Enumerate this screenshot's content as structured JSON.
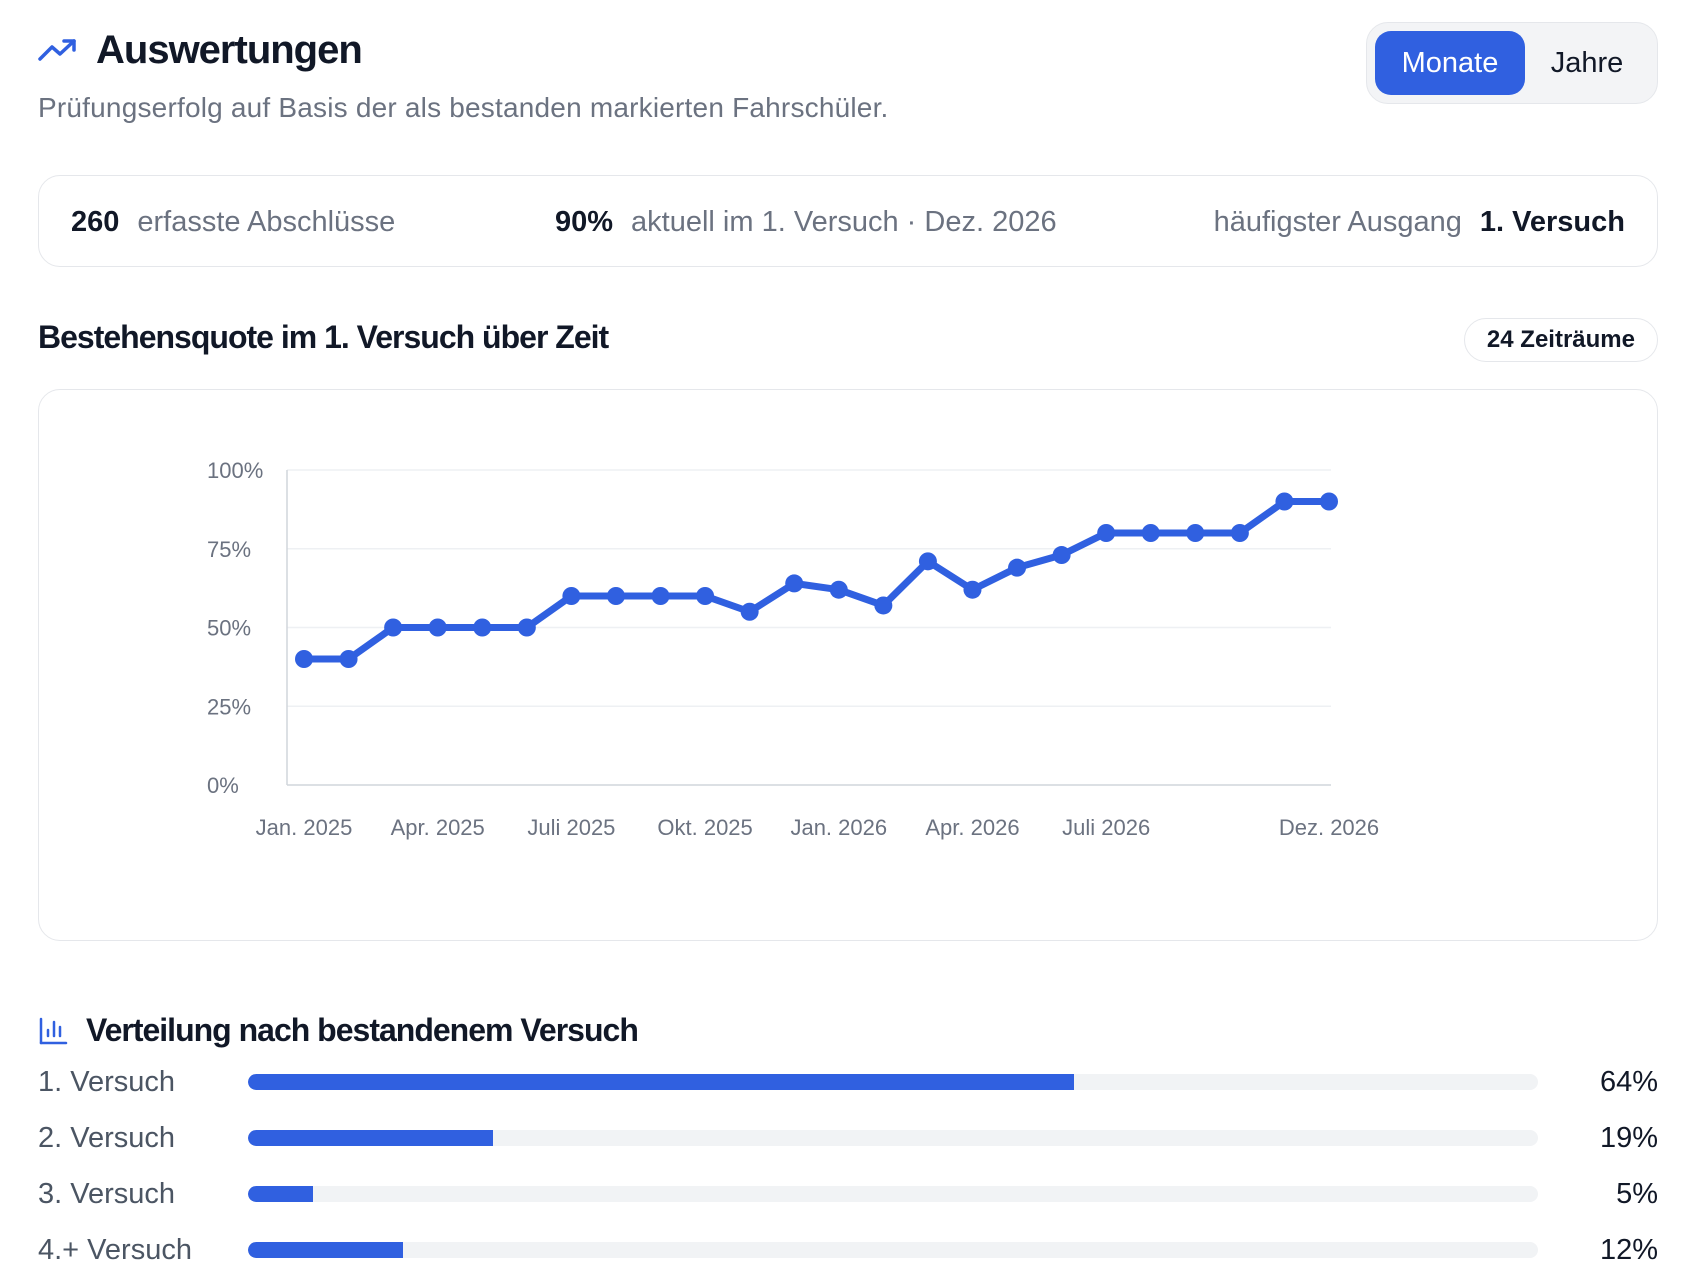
{
  "header": {
    "title": "Auswertungen",
    "subtitle": "Prüfungserfolg auf Basis der als bestanden markierten Fahrschüler.",
    "icon": "trending-up-icon"
  },
  "period_toggle": {
    "options": [
      "Monate",
      "Jahre"
    ],
    "selected": "Monate"
  },
  "stats": {
    "total_value": "260",
    "total_label": "erfasste Abschlüsse",
    "current_value": "90%",
    "current_label": "aktuell im 1. Versuch · Dez. 2026",
    "most_label": "häufigster Ausgang",
    "most_value": "1. Versuch"
  },
  "chart_section": {
    "title": "Bestehensquote im 1. Versuch über Zeit",
    "badge": "24 Zeiträume"
  },
  "chart_data": {
    "type": "line",
    "title": "",
    "xlabel": "",
    "ylabel": "",
    "ylim": [
      0,
      100
    ],
    "yticks": [
      "0%",
      "25%",
      "50%",
      "75%",
      "100%"
    ],
    "xtick_labels": [
      "Jan. 2025",
      "Apr. 2025",
      "Juli 2025",
      "Okt. 2025",
      "Jan. 2026",
      "Apr. 2026",
      "Juli 2026",
      "Dez. 2026"
    ],
    "xtick_indices": [
      0,
      3,
      6,
      9,
      12,
      15,
      18,
      23
    ],
    "categories": [
      "Jan. 2025",
      "Feb. 2025",
      "März 2025",
      "Apr. 2025",
      "Mai 2025",
      "Juni 2025",
      "Juli 2025",
      "Aug. 2025",
      "Sep. 2025",
      "Okt. 2025",
      "Nov. 2025",
      "Dez. 2025",
      "Jan. 2026",
      "Feb. 2026",
      "März 2026",
      "Apr. 2026",
      "Mai 2026",
      "Juni 2026",
      "Juli 2026",
      "Aug. 2026",
      "Sep. 2026",
      "Okt. 2026",
      "Nov. 2026",
      "Dez. 2026"
    ],
    "values": [
      40,
      40,
      50,
      50,
      50,
      50,
      60,
      60,
      60,
      60,
      55,
      64,
      62,
      57,
      71,
      62,
      69,
      73,
      80,
      80,
      80,
      80,
      90,
      90
    ],
    "grid": true,
    "color": "#3060e0"
  },
  "distribution": {
    "title": "Verteilung nach bestandenem Versuch",
    "icon": "bar-chart-icon",
    "rows": [
      {
        "label": "1. Versuch",
        "pct_text": "64%",
        "value": 64
      },
      {
        "label": "2. Versuch",
        "pct_text": "19%",
        "value": 19
      },
      {
        "label": "3. Versuch",
        "pct_text": "5%",
        "value": 5
      },
      {
        "label": "4.+ Versuch",
        "pct_text": "12%",
        "value": 12
      }
    ]
  },
  "colors": {
    "accent": "#3060e0",
    "muted_text": "#6b7280",
    "border": "#e5e7eb"
  }
}
